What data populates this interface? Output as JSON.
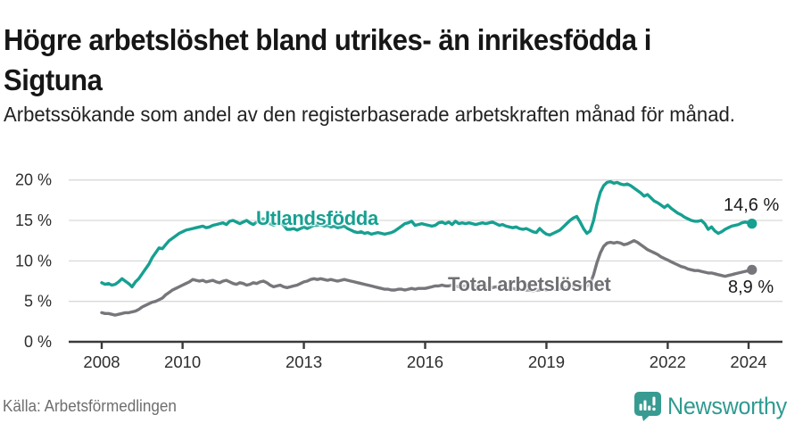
{
  "header": {
    "title": "Högre arbetslöshet bland utrikes- än inrikesfödda i Sigtuna",
    "subtitle": "Arbetssökande som andel av den registerbaserade arbetskraften månad för månad."
  },
  "chart_data": {
    "type": "line",
    "title": "Högre arbetslöshet bland utrikes- än inrikesfödda i Sigtuna",
    "xlabel": "",
    "ylabel": "Arbetssökande som andel av den registerbaserade arbetskraften",
    "x_start_year": 2008,
    "points_per_year": 12,
    "x_tick_years": [
      2008,
      2010,
      2013,
      2016,
      2019,
      2022,
      2024
    ],
    "x_tick_labels": [
      "2008",
      "2010",
      "2013",
      "2016",
      "2019",
      "2022",
      "2024"
    ],
    "y_ticks": [
      0,
      5,
      10,
      15,
      20
    ],
    "y_tick_labels": [
      "0 %",
      "5 %",
      "10 %",
      "15 %",
      "20 %"
    ],
    "ylim": [
      0,
      21.5
    ],
    "xlim": [
      2007.2,
      2024.9
    ],
    "grid": true,
    "legend_position": "inline-labels",
    "series": [
      {
        "name": "Utlandsfödda",
        "color": "#16a091",
        "end_label": "14,6 %",
        "end_value": 14.6,
        "values": [
          7.3,
          7.1,
          7.2,
          7.0,
          7.1,
          7.4,
          7.8,
          7.5,
          7.2,
          6.8,
          7.4,
          7.8,
          8.4,
          9.0,
          9.6,
          10.4,
          11.0,
          11.6,
          11.5,
          12.0,
          12.5,
          12.8,
          13.1,
          13.4,
          13.6,
          13.8,
          13.9,
          14.0,
          14.1,
          14.2,
          14.3,
          14.1,
          14.2,
          14.4,
          14.5,
          14.6,
          14.7,
          14.5,
          14.9,
          15.0,
          14.8,
          14.6,
          14.8,
          15.0,
          14.7,
          14.5,
          14.8,
          15.1,
          15.2,
          14.9,
          14.6,
          14.4,
          14.6,
          14.8,
          14.4,
          13.9,
          13.9,
          14.0,
          13.8,
          14.0,
          14.2,
          14.0,
          14.2,
          14.4,
          14.4,
          14.5,
          14.3,
          14.4,
          14.2,
          14.3,
          14.1,
          14.2,
          14.3,
          14.0,
          13.8,
          13.6,
          13.5,
          13.6,
          13.4,
          13.5,
          13.3,
          13.4,
          13.5,
          13.4,
          13.3,
          13.4,
          13.5,
          13.7,
          14.0,
          14.3,
          14.6,
          14.7,
          14.9,
          14.4,
          14.5,
          14.6,
          14.5,
          14.4,
          14.3,
          14.4,
          14.7,
          14.8,
          14.6,
          14.8,
          14.5,
          14.9,
          14.6,
          14.7,
          14.6,
          14.7,
          14.6,
          14.5,
          14.6,
          14.7,
          14.6,
          14.7,
          14.8,
          14.6,
          14.4,
          14.5,
          14.3,
          14.2,
          14.1,
          14.2,
          14.0,
          13.9,
          14.0,
          13.8,
          13.6,
          13.5,
          14.0,
          13.6,
          13.3,
          13.2,
          13.4,
          13.6,
          13.8,
          14.2,
          14.6,
          15.0,
          15.3,
          15.5,
          14.8,
          14.0,
          13.4,
          13.7,
          15.0,
          17.0,
          18.5,
          19.3,
          19.7,
          19.8,
          19.6,
          19.7,
          19.5,
          19.4,
          19.5,
          19.3,
          19.0,
          18.7,
          18.4,
          18.0,
          18.2,
          17.8,
          17.4,
          17.2,
          16.9,
          16.6,
          16.9,
          16.5,
          16.2,
          15.9,
          15.7,
          15.4,
          15.2,
          15.0,
          14.9,
          14.9,
          15.0,
          14.6,
          13.9,
          14.2,
          13.7,
          13.4,
          13.6,
          13.9,
          14.1,
          14.3,
          14.4,
          14.5,
          14.7,
          14.8,
          14.7,
          14.6
        ]
      },
      {
        "name": "Total arbetslöshet",
        "color": "#76767b",
        "end_label": "8,9 %",
        "end_value": 8.9,
        "values": [
          3.6,
          3.5,
          3.5,
          3.4,
          3.3,
          3.4,
          3.5,
          3.6,
          3.6,
          3.7,
          3.8,
          4.0,
          4.3,
          4.5,
          4.7,
          4.9,
          5.0,
          5.2,
          5.4,
          5.8,
          6.1,
          6.4,
          6.6,
          6.8,
          7.0,
          7.2,
          7.4,
          7.7,
          7.6,
          7.5,
          7.6,
          7.4,
          7.5,
          7.6,
          7.4,
          7.3,
          7.5,
          7.6,
          7.4,
          7.2,
          7.1,
          7.3,
          7.2,
          7.0,
          7.1,
          7.3,
          7.2,
          7.4,
          7.5,
          7.3,
          7.0,
          6.8,
          6.9,
          7.0,
          6.8,
          6.7,
          6.8,
          6.9,
          7.0,
          7.2,
          7.4,
          7.5,
          7.7,
          7.8,
          7.7,
          7.8,
          7.7,
          7.6,
          7.7,
          7.6,
          7.5,
          7.6,
          7.7,
          7.6,
          7.5,
          7.4,
          7.3,
          7.2,
          7.1,
          7.0,
          6.9,
          6.8,
          6.7,
          6.6,
          6.5,
          6.5,
          6.4,
          6.4,
          6.5,
          6.5,
          6.4,
          6.5,
          6.6,
          6.5,
          6.6,
          6.6,
          6.6,
          6.7,
          6.8,
          6.9,
          6.9,
          7.0,
          6.9,
          6.9,
          7.0,
          6.9,
          6.8,
          6.9,
          6.9,
          6.9,
          7.0,
          6.9,
          6.8,
          6.9,
          6.8,
          6.8,
          6.7,
          6.8,
          6.7,
          6.7,
          6.7,
          6.6,
          6.6,
          6.5,
          6.5,
          6.4,
          6.4,
          6.4,
          6.3,
          6.4,
          6.4,
          6.5,
          6.4,
          6.4,
          6.5,
          6.5,
          6.6,
          6.6,
          6.7,
          6.8,
          6.9,
          7.0,
          6.9,
          6.8,
          6.9,
          7.2,
          8.3,
          9.8,
          11.0,
          11.8,
          12.2,
          12.3,
          12.2,
          12.3,
          12.2,
          12.0,
          12.1,
          12.3,
          12.5,
          12.3,
          12.0,
          11.7,
          11.4,
          11.2,
          11.0,
          10.8,
          10.5,
          10.3,
          10.1,
          9.9,
          9.7,
          9.5,
          9.3,
          9.2,
          9.0,
          8.9,
          8.8,
          8.8,
          8.7,
          8.6,
          8.5,
          8.5,
          8.4,
          8.3,
          8.2,
          8.1,
          8.2,
          8.3,
          8.4,
          8.5,
          8.6,
          8.7,
          8.8,
          8.9
        ]
      }
    ]
  },
  "style": {
    "grid_color": "#d9d9d9",
    "axis_color": "#3a3a3a",
    "tick_text_color": "#2e2e2e",
    "teal": "#16a091",
    "gray": "#76767b",
    "logo_teal": "#379b91"
  },
  "footer": {
    "source": "Källa: Arbetsförmedlingen",
    "brand": "Newsworthy",
    "logo_icon": "bar-chart-speech-bubble-icon"
  }
}
